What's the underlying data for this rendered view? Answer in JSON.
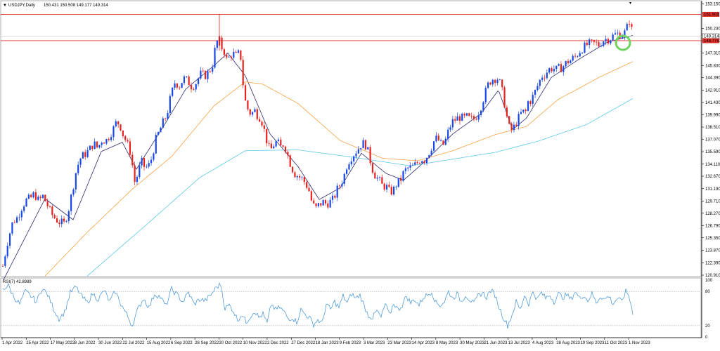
{
  "header": {
    "symbol": "USDJPY,Daily",
    "ohlc": "150.431 150.508 149.177 149.314"
  },
  "rsi": {
    "label": "RSI(7) 42.8989",
    "levels": [
      80,
      20
    ],
    "scale_labels": [
      "100",
      "80",
      "20",
      "0"
    ]
  },
  "chart_data": {
    "type": "candlestick",
    "title": "",
    "xlabel": "",
    "ylabel": "",
    "ylim": [
      120.91,
      153.15
    ],
    "y_ticks": [
      "153.150",
      "150.230",
      "148.770",
      "147.310",
      "145.830",
      "144.390",
      "142.910",
      "141.430",
      "139.990",
      "138.510",
      "137.070",
      "135.590",
      "134.110",
      "132.670",
      "131.190",
      "129.710",
      "128.270",
      "126.790",
      "125.350",
      "123.870",
      "122.390",
      "120.910"
    ],
    "x_ticks": [
      "1 Apr 2022",
      "25 Apr 2022",
      "17 May 2022",
      "8 Jun 2022",
      "30 Jun 2022",
      "22 Jul 2022",
      "15 Aug 2022",
      "6 Sep 2022",
      "28 Sep 2022",
      "20 Oct 2022",
      "10 Nov 2022",
      "2 Dec 2022",
      "27 Dec 2022",
      "18 Jan 2023",
      "9 Feb 2023",
      "3 Mar 2023",
      "23 Mar 2023",
      "14 Apr 2023",
      "8 May 2023",
      "30 May 2023",
      "21 Jun 2023",
      "13 Jul 2023",
      "4 Aug 2023",
      "28 Aug 2023",
      "19 Sep 2023",
      "11 Oct 2023",
      "1 Nov 2023"
    ],
    "price_labels": {
      "resistance": "151.903",
      "current": "149.314",
      "support": "148.775"
    },
    "horizontal_lines": {
      "resistance": 151.903,
      "support": 148.775
    },
    "close_path": [
      [
        0,
        122.0
      ],
      [
        7,
        125.0
      ],
      [
        14,
        127.2
      ],
      [
        21,
        127.8
      ],
      [
        27,
        129.0
      ],
      [
        33,
        129.8
      ],
      [
        39,
        130.0
      ],
      [
        45,
        130.6
      ],
      [
        51,
        129.7
      ],
      [
        57,
        130.3
      ],
      [
        63,
        129.3
      ],
      [
        69,
        128.2
      ],
      [
        75,
        127.6
      ],
      [
        81,
        127.2
      ],
      [
        87,
        127.0
      ],
      [
        93,
        128.5
      ],
      [
        99,
        131.0
      ],
      [
        105,
        133.6
      ],
      [
        111,
        134.9
      ],
      [
        117,
        135.3
      ],
      [
        123,
        135.8
      ],
      [
        129,
        136.6
      ],
      [
        135,
        136.0
      ],
      [
        141,
        137.0
      ],
      [
        147,
        136.9
      ],
      [
        153,
        137.7
      ],
      [
        158,
        138.4
      ],
      [
        162,
        139.2
      ],
      [
        167,
        138.7
      ],
      [
        171,
        137.6
      ],
      [
        176,
        136.7
      ],
      [
        181,
        135.6
      ],
      [
        185,
        133.6
      ],
      [
        188,
        131.8
      ],
      [
        193,
        133.3
      ],
      [
        197,
        134.4
      ],
      [
        202,
        133.7
      ],
      [
        207,
        133.8
      ],
      [
        212,
        134.9
      ],
      [
        217,
        136.9
      ],
      [
        222,
        137.9
      ],
      [
        227,
        138.9
      ],
      [
        233,
        139.9
      ],
      [
        239,
        142.2
      ],
      [
        245,
        143.9
      ],
      [
        251,
        143.4
      ],
      [
        257,
        144.3
      ],
      [
        263,
        144.0
      ],
      [
        269,
        143.3
      ],
      [
        275,
        143.8
      ],
      [
        281,
        144.8
      ],
      [
        287,
        144.6
      ],
      [
        293,
        145.0
      ],
      [
        299,
        146.1
      ],
      [
        303,
        148.5
      ],
      [
        307,
        148.9
      ],
      [
        311,
        148.0
      ],
      [
        315,
        147.5
      ],
      [
        319,
        146.3
      ],
      [
        323,
        147.0
      ],
      [
        327,
        147.3
      ],
      [
        331,
        146.9
      ],
      [
        335,
        147.2
      ],
      [
        339,
        146.7
      ],
      [
        343,
        142.2
      ],
      [
        347,
        140.9
      ],
      [
        351,
        140.2
      ],
      [
        355,
        140.2
      ],
      [
        359,
        140.5
      ],
      [
        363,
        139.8
      ],
      [
        367,
        139.6
      ],
      [
        371,
        138.4
      ],
      [
        375,
        137.0
      ],
      [
        380,
        135.6
      ],
      [
        385,
        136.4
      ],
      [
        390,
        136.8
      ],
      [
        395,
        136.1
      ],
      [
        400,
        136.6
      ],
      [
        405,
        135.2
      ],
      [
        410,
        133.9
      ],
      [
        415,
        133.0
      ],
      [
        420,
        132.7
      ],
      [
        425,
        132.4
      ],
      [
        430,
        131.9
      ],
      [
        435,
        131.1
      ],
      [
        440,
        129.4
      ],
      [
        445,
        128.8
      ],
      [
        450,
        129.3
      ],
      [
        455,
        129.6
      ],
      [
        460,
        129.4
      ],
      [
        465,
        129.6
      ],
      [
        470,
        129.9
      ],
      [
        475,
        131.0
      ],
      [
        480,
        131.7
      ],
      [
        485,
        132.6
      ],
      [
        490,
        134.2
      ],
      [
        495,
        134.9
      ],
      [
        500,
        135.4
      ],
      [
        505,
        135.9
      ],
      [
        510,
        136.5
      ],
      [
        515,
        136.6
      ],
      [
        520,
        135.4
      ],
      [
        525,
        133.7
      ],
      [
        530,
        132.7
      ],
      [
        535,
        132.2
      ],
      [
        540,
        131.5
      ],
      [
        545,
        131.5
      ],
      [
        550,
        130.8
      ],
      [
        555,
        130.9
      ],
      [
        560,
        131.8
      ],
      [
        565,
        132.1
      ],
      [
        570,
        133.1
      ],
      [
        575,
        133.6
      ],
      [
        580,
        133.7
      ],
      [
        585,
        133.9
      ],
      [
        590,
        134.3
      ],
      [
        595,
        134.8
      ],
      [
        600,
        134.6
      ],
      [
        605,
        135.3
      ],
      [
        610,
        136.2
      ],
      [
        615,
        137.2
      ],
      [
        620,
        136.9
      ],
      [
        625,
        136.2
      ],
      [
        630,
        137.0
      ],
      [
        635,
        138.4
      ],
      [
        640,
        139.2
      ],
      [
        645,
        139.5
      ],
      [
        650,
        139.7
      ],
      [
        655,
        139.5
      ],
      [
        660,
        139.7
      ],
      [
        665,
        139.4
      ],
      [
        670,
        139.5
      ],
      [
        675,
        140.0
      ],
      [
        680,
        141.0
      ],
      [
        685,
        142.3
      ],
      [
        690,
        143.5
      ],
      [
        695,
        144.2
      ],
      [
        700,
        144.3
      ],
      [
        705,
        144.3
      ],
      [
        710,
        142.8
      ],
      [
        715,
        140.7
      ],
      [
        719,
        138.6
      ],
      [
        723,
        138.1
      ],
      [
        727,
        138.5
      ],
      [
        731,
        139.2
      ],
      [
        735,
        139.8
      ],
      [
        739,
        140.4
      ],
      [
        743,
        140.1
      ],
      [
        747,
        141.5
      ],
      [
        751,
        141.7
      ],
      [
        755,
        142.3
      ],
      [
        759,
        143.1
      ],
      [
        763,
        143.9
      ],
      [
        767,
        144.6
      ],
      [
        771,
        144.8
      ],
      [
        775,
        145.2
      ],
      [
        779,
        145.5
      ],
      [
        783,
        145.5
      ],
      [
        787,
        145.3
      ],
      [
        791,
        145.5
      ],
      [
        795,
        145.6
      ],
      [
        799,
        145.9
      ],
      [
        803,
        146.3
      ],
      [
        807,
        146.4
      ],
      [
        811,
        146.7
      ],
      [
        815,
        146.9
      ],
      [
        819,
        147.4
      ],
      [
        823,
        147.8
      ],
      [
        827,
        148.0
      ],
      [
        831,
        148.3
      ],
      [
        835,
        148.4
      ],
      [
        839,
        148.4
      ],
      [
        843,
        148.5
      ],
      [
        847,
        148.2
      ],
      [
        851,
        148.6
      ],
      [
        855,
        148.9
      ],
      [
        859,
        149.0
      ],
      [
        863,
        149.0
      ],
      [
        867,
        149.3
      ],
      [
        871,
        149.5
      ],
      [
        875,
        149.6
      ],
      [
        879,
        149.5
      ],
      [
        883,
        149.6
      ],
      [
        887,
        150.0
      ],
      [
        890,
        151.4
      ],
      [
        893,
        150.8
      ],
      [
        896,
        149.3
      ]
    ],
    "series": [
      {
        "period": "short",
        "color": "#2b2b72",
        "values": [
          [
            0,
            120.2
          ],
          [
            60,
            130.0
          ],
          [
            100,
            127.5
          ],
          [
            140,
            135.6
          ],
          [
            170,
            136.7
          ],
          [
            190,
            133.5
          ],
          [
            230,
            138.8
          ],
          [
            260,
            143.0
          ],
          [
            300,
            145.8
          ],
          [
            320,
            147.3
          ],
          [
            345,
            144.6
          ],
          [
            380,
            137.7
          ],
          [
            420,
            133.8
          ],
          [
            450,
            129.9
          ],
          [
            480,
            131.3
          ],
          [
            510,
            135.4
          ],
          [
            545,
            133.0
          ],
          [
            570,
            132.2
          ],
          [
            600,
            134.4
          ],
          [
            640,
            137.7
          ],
          [
            680,
            140.1
          ],
          [
            705,
            142.9
          ],
          [
            725,
            138.2
          ],
          [
            745,
            139.6
          ],
          [
            780,
            144.4
          ],
          [
            820,
            146.6
          ],
          [
            860,
            148.6
          ],
          [
            896,
            149.4
          ]
        ]
      },
      {
        "period": "medium",
        "color": "#f5a142",
        "values": [
          [
            60,
            120.8
          ],
          [
            120,
            126.0
          ],
          [
            185,
            131.2
          ],
          [
            240,
            135.0
          ],
          [
            300,
            141.0
          ],
          [
            345,
            143.9
          ],
          [
            370,
            143.6
          ],
          [
            420,
            141.3
          ],
          [
            480,
            136.9
          ],
          [
            540,
            134.8
          ],
          [
            590,
            134.5
          ],
          [
            640,
            135.7
          ],
          [
            700,
            137.6
          ],
          [
            745,
            138.6
          ],
          [
            790,
            141.8
          ],
          [
            850,
            144.5
          ],
          [
            896,
            146.3
          ]
        ]
      },
      {
        "period": "long",
        "color": "#5ec8ea",
        "values": [
          [
            120,
            120.8
          ],
          [
            200,
            126.6
          ],
          [
            280,
            132.5
          ],
          [
            345,
            135.7
          ],
          [
            420,
            135.8
          ],
          [
            500,
            134.9
          ],
          [
            580,
            133.9
          ],
          [
            640,
            134.7
          ],
          [
            700,
            135.5
          ],
          [
            760,
            136.8
          ],
          [
            830,
            138.8
          ],
          [
            896,
            141.9
          ]
        ]
      }
    ],
    "rsi_values": [
      [
        0,
        85
      ],
      [
        8,
        90
      ],
      [
        16,
        70
      ],
      [
        24,
        58
      ],
      [
        32,
        80
      ],
      [
        40,
        72
      ],
      [
        48,
        62
      ],
      [
        56,
        86
      ],
      [
        64,
        74
      ],
      [
        72,
        50
      ],
      [
        80,
        32
      ],
      [
        88,
        44
      ],
      [
        96,
        78
      ],
      [
        104,
        88
      ],
      [
        112,
        72
      ],
      [
        120,
        60
      ],
      [
        128,
        76
      ],
      [
        136,
        66
      ],
      [
        144,
        82
      ],
      [
        152,
        62
      ],
      [
        160,
        80
      ],
      [
        168,
        58
      ],
      [
        176,
        40
      ],
      [
        184,
        20
      ],
      [
        192,
        48
      ],
      [
        200,
        68
      ],
      [
        208,
        52
      ],
      [
        216,
        76
      ],
      [
        224,
        70
      ],
      [
        232,
        54
      ],
      [
        240,
        84
      ],
      [
        248,
        74
      ],
      [
        256,
        62
      ],
      [
        264,
        78
      ],
      [
        272,
        58
      ],
      [
        280,
        66
      ],
      [
        288,
        64
      ],
      [
        296,
        74
      ],
      [
        304,
        88
      ],
      [
        310,
        92
      ],
      [
        316,
        50
      ],
      [
        322,
        56
      ],
      [
        328,
        46
      ],
      [
        334,
        30
      ],
      [
        340,
        40
      ],
      [
        346,
        26
      ],
      [
        352,
        36
      ],
      [
        358,
        46
      ],
      [
        364,
        34
      ],
      [
        370,
        40
      ],
      [
        376,
        24
      ],
      [
        382,
        58
      ],
      [
        388,
        48
      ],
      [
        394,
        52
      ],
      [
        400,
        44
      ],
      [
        406,
        32
      ],
      [
        412,
        34
      ],
      [
        418,
        26
      ],
      [
        424,
        48
      ],
      [
        430,
        40
      ],
      [
        436,
        34
      ],
      [
        442,
        22
      ],
      [
        448,
        30
      ],
      [
        454,
        24
      ],
      [
        460,
        58
      ],
      [
        466,
        48
      ],
      [
        472,
        62
      ],
      [
        478,
        52
      ],
      [
        484,
        72
      ],
      [
        490,
        60
      ],
      [
        496,
        76
      ],
      [
        502,
        68
      ],
      [
        508,
        74
      ],
      [
        514,
        54
      ],
      [
        520,
        38
      ],
      [
        526,
        34
      ],
      [
        532,
        46
      ],
      [
        538,
        34
      ],
      [
        544,
        58
      ],
      [
        550,
        38
      ],
      [
        556,
        60
      ],
      [
        562,
        48
      ],
      [
        568,
        56
      ],
      [
        574,
        72
      ],
      [
        580,
        60
      ],
      [
        586,
        66
      ],
      [
        592,
        56
      ],
      [
        598,
        70
      ],
      [
        604,
        74
      ],
      [
        610,
        80
      ],
      [
        616,
        60
      ],
      [
        622,
        56
      ],
      [
        628,
        62
      ],
      [
        634,
        80
      ],
      [
        640,
        68
      ],
      [
        646,
        76
      ],
      [
        652,
        62
      ],
      [
        658,
        74
      ],
      [
        664,
        66
      ],
      [
        670,
        58
      ],
      [
        676,
        72
      ],
      [
        682,
        78
      ],
      [
        688,
        70
      ],
      [
        694,
        82
      ],
      [
        700,
        74
      ],
      [
        706,
        52
      ],
      [
        712,
        34
      ],
      [
        718,
        20
      ],
      [
        724,
        38
      ],
      [
        730,
        62
      ],
      [
        736,
        48
      ],
      [
        742,
        74
      ],
      [
        748,
        58
      ],
      [
        754,
        80
      ],
      [
        760,
        66
      ],
      [
        766,
        78
      ],
      [
        772,
        68
      ],
      [
        778,
        74
      ],
      [
        784,
        62
      ],
      [
        790,
        76
      ],
      [
        796,
        70
      ],
      [
        802,
        74
      ],
      [
        808,
        66
      ],
      [
        814,
        80
      ],
      [
        820,
        68
      ],
      [
        826,
        74
      ],
      [
        832,
        64
      ],
      [
        838,
        76
      ],
      [
        844,
        60
      ],
      [
        850,
        72
      ],
      [
        856,
        66
      ],
      [
        862,
        72
      ],
      [
        868,
        58
      ],
      [
        874,
        68
      ],
      [
        880,
        62
      ],
      [
        886,
        80
      ],
      [
        890,
        74
      ],
      [
        896,
        43
      ]
    ]
  }
}
